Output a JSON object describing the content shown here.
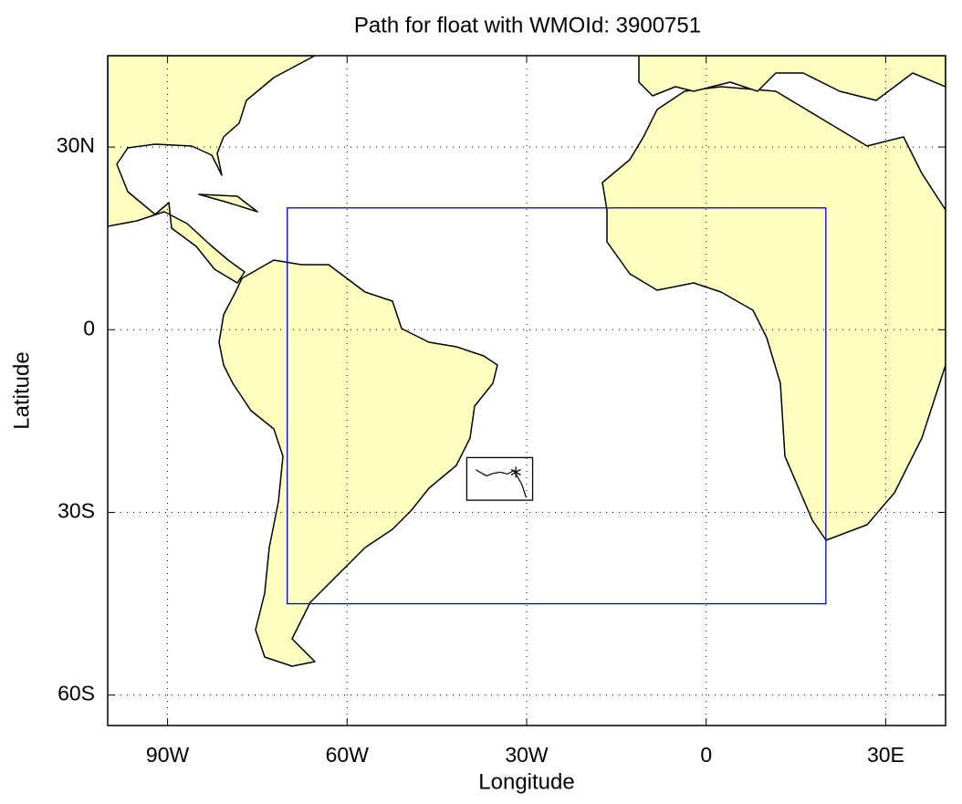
{
  "chart_data": {
    "type": "map",
    "title": "Path for float with WMOId: 3900751",
    "xlabel": "Longitude",
    "ylabel": "Latitude",
    "xlim": [
      -100,
      40
    ],
    "ylim": [
      -65,
      45
    ],
    "xticks": [
      {
        "value": -90,
        "label": "90W"
      },
      {
        "value": -60,
        "label": "60W"
      },
      {
        "value": -30,
        "label": "30W"
      },
      0,
      {
        "value": 30,
        "label": "30E"
      }
    ],
    "yticks": [
      {
        "value": 30,
        "label": "30N"
      },
      0,
      {
        "value": -30,
        "label": "30S"
      },
      {
        "value": -60,
        "label": "60S"
      }
    ],
    "grid": true,
    "land_color": "#ffffc0",
    "boxes": [
      {
        "lon": [
          -70,
          20
        ],
        "lat": [
          -45,
          20
        ],
        "color": "#0000cc"
      },
      {
        "lon": [
          -40,
          -29
        ],
        "lat": [
          -28,
          -21
        ],
        "color": "#000000"
      }
    ],
    "track": {
      "color": "#000000",
      "x": [
        -38.5,
        -36.7,
        -35.6,
        -34.4,
        -33.2,
        -32.1,
        -31.5,
        -30.8,
        -30.1
      ],
      "values": [
        -23.0,
        -24.0,
        -23.6,
        -23.4,
        -23.7,
        -23.1,
        -24.2,
        -25.4,
        -27.5
      ]
    },
    "marker": {
      "x": -31.8,
      "y": -23.4
    }
  }
}
